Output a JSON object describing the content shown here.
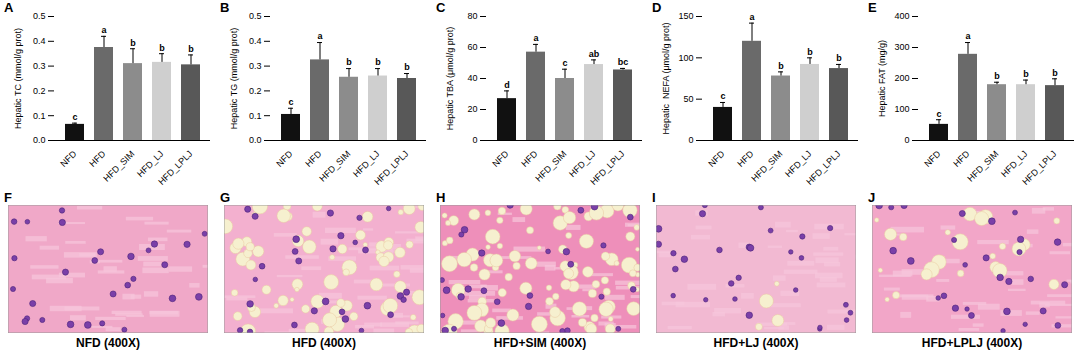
{
  "chart_data": [
    {
      "type": "bar",
      "panel": "A",
      "ylabel": "Hepatic TC (mmol/g prot)",
      "categories": [
        "NFD",
        "HFD",
        "HFD_SIM",
        "HFD_LJ",
        "HFD_LPLJ"
      ],
      "values": [
        0.065,
        0.375,
        0.31,
        0.315,
        0.305
      ],
      "errors": [
        0.005,
        0.045,
        0.06,
        0.035,
        0.04
      ],
      "significance": [
        "c",
        "a",
        "b",
        "b",
        "b"
      ],
      "colors": [
        "#111111",
        "#6a6a6a",
        "#8c8c8c",
        "#cfcfcf",
        "#585858"
      ],
      "ylim": [
        0,
        0.5
      ],
      "yticks": [
        {
          "value": 0,
          "label": "0.0"
        },
        0.1,
        0.2,
        0.3,
        0.4,
        0.5
      ]
    },
    {
      "type": "bar",
      "panel": "B",
      "ylabel": "Hepatic TG (mmol/g prot)",
      "categories": [
        "NFD",
        "HFD",
        "HFD_SIM",
        "HFD_LJ",
        "HFD_LPLJ"
      ],
      "values": [
        0.105,
        0.325,
        0.255,
        0.26,
        0.25
      ],
      "errors": [
        0.025,
        0.07,
        0.035,
        0.03,
        0.02
      ],
      "significance": [
        "c",
        "a",
        "b",
        "b",
        "b"
      ],
      "colors": [
        "#111111",
        "#6a6a6a",
        "#8c8c8c",
        "#cfcfcf",
        "#585858"
      ],
      "ylim": [
        0,
        0.5
      ],
      "yticks": [
        {
          "value": 0,
          "label": "0.0"
        },
        0.1,
        0.2,
        0.3,
        0.4,
        0.5
      ]
    },
    {
      "type": "bar",
      "panel": "C",
      "ylabel": "Hepatic TBA (μmol/g prot)",
      "categories": [
        "NFD",
        "HFD",
        "HFD_SIM",
        "HFD_LJ",
        "HFD_LPLJ"
      ],
      "values": [
        27,
        57,
        40,
        49,
        45.5
      ],
      "errors": [
        5,
        5,
        6,
        3,
        1
      ],
      "significance": [
        "d",
        "a",
        "c",
        "ab",
        "bc"
      ],
      "colors": [
        "#111111",
        "#6a6a6a",
        "#8c8c8c",
        "#cfcfcf",
        "#585858"
      ],
      "ylim": [
        0,
        80
      ],
      "yticks": [
        0,
        20,
        40,
        60,
        80
      ]
    },
    {
      "type": "bar",
      "panel": "D",
      "ylabel": "Hepatic  NEFA (μmol/g prot)",
      "categories": [
        "NFD",
        "HFD",
        "HFD_SIM",
        "HFD_LJ",
        "HFD_LPLJ"
      ],
      "values": [
        40,
        120,
        78,
        92,
        87
      ],
      "errors": [
        6,
        22,
        5,
        8,
        5
      ],
      "significance": [
        "c",
        "a",
        "b",
        "b",
        "b"
      ],
      "colors": [
        "#111111",
        "#6a6a6a",
        "#8c8c8c",
        "#cfcfcf",
        "#585858"
      ],
      "ylim": [
        0,
        150
      ],
      "yticks": [
        0,
        50,
        100,
        150
      ]
    },
    {
      "type": "bar",
      "panel": "E",
      "ylabel": "Hepatic FAT (mg/g)",
      "categories": [
        "NFD",
        "HFD",
        "HFD_SIM",
        "HFD_LJ",
        "HFD_LPLJ"
      ],
      "values": [
        52,
        278,
        180,
        180,
        177
      ],
      "errors": [
        15,
        38,
        8,
        15,
        22
      ],
      "significance": [
        "c",
        "a",
        "b",
        "b",
        "b"
      ],
      "colors": [
        "#111111",
        "#6a6a6a",
        "#8c8c8c",
        "#cfcfcf",
        "#585858"
      ],
      "ylim": [
        0,
        400
      ],
      "yticks": [
        0,
        100,
        200,
        300,
        400
      ]
    }
  ],
  "images": [
    {
      "panel": "F",
      "caption": "NFD (400X)"
    },
    {
      "panel": "G",
      "caption": "HFD (400X)"
    },
    {
      "panel": "H",
      "caption": "HFD+SIM (400X)"
    },
    {
      "panel": "I",
      "caption": "HFD+LJ (400X)"
    },
    {
      "panel": "J",
      "caption": "HFD+LPLJ (400X)"
    }
  ]
}
